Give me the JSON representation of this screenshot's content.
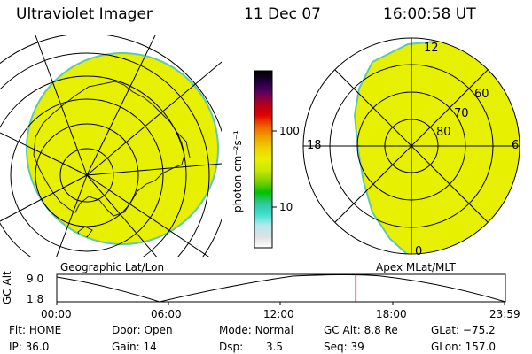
{
  "header": {
    "instrument": "Ultraviolet Imager",
    "date": "11 Dec 07",
    "time": "16:00:58 UT"
  },
  "colorbar": {
    "unit_label": "photon cm⁻²s⁻¹",
    "tick_100": "100",
    "tick_10": "10",
    "colors": [
      "#ffffff",
      "#e0e0e0",
      "#b8e8f0",
      "#40e0d0",
      "#30c8a0",
      "#00c000",
      "#80d000",
      "#c8e800",
      "#e8f000",
      "#f0d000",
      "#f0a000",
      "#f06000",
      "#e00000",
      "#b00020",
      "#600060",
      "#200040",
      "#000000"
    ]
  },
  "left_map": {
    "caption": "Geographic Lat/Lon",
    "fill_color": "#e6f000"
  },
  "right_map": {
    "caption": "Apex MLat/MLT",
    "fill_color": "#e6f000",
    "lat_labels": [
      "60",
      "70",
      "80"
    ],
    "mlt_labels": {
      "top": "12",
      "left": "18",
      "right": "6",
      "bottom": "0"
    }
  },
  "altitude_plot": {
    "ylabel": "GC Alt",
    "y_top": "9.0",
    "y_bottom": "1.8",
    "x_labels": [
      "00:00",
      "06:00",
      "12:00",
      "18:00",
      "23:59"
    ],
    "current_time_marker_hours": 16.0
  },
  "status": {
    "flt_label": "Flt:",
    "flt_value": "HOME",
    "ip_label": "IP:",
    "ip_value": "36.0",
    "door_label": "Door:",
    "door_value": "Open",
    "gain_label": "Gain:",
    "gain_value": "14",
    "mode_label": "Mode:",
    "mode_value": "Normal",
    "dsp_label": "Dsp:",
    "dsp_value": "3.5",
    "gcalt_label": "GC Alt:",
    "gcalt_value": "8.8 Re",
    "seq_label": "Seq:",
    "seq_value": "39",
    "glat_label": "GLat:",
    "glat_value": "−75.2",
    "glon_label": "GLon:",
    "glon_value": "157.0"
  }
}
